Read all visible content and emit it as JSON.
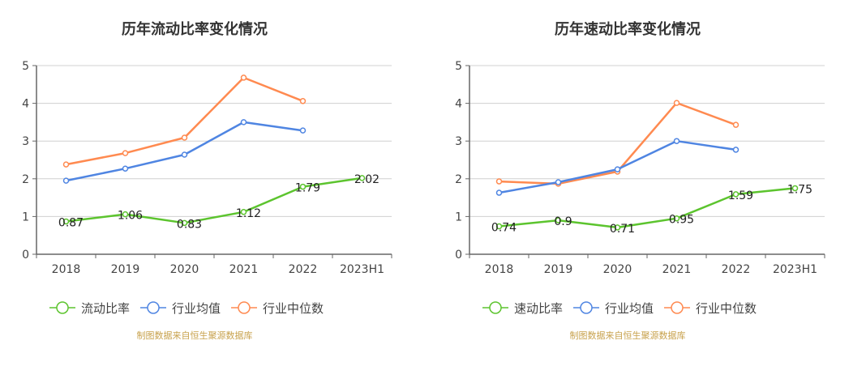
{
  "chart_data": [
    {
      "type": "line",
      "title": "历年流动比率变化情况",
      "categories": [
        "2018",
        "2019",
        "2020",
        "2021",
        "2022",
        "2023H1"
      ],
      "ylim": [
        0,
        5
      ],
      "yticks": [
        "0",
        "1",
        "2",
        "3",
        "4",
        "5"
      ],
      "grid": true,
      "legend_position": "bottom",
      "series": [
        {
          "name": "流动比率",
          "color": "#5cc42e",
          "values": [
            0.87,
            1.06,
            0.83,
            1.12,
            1.79,
            2.02
          ],
          "labels": [
            "0.87",
            "1.06",
            "0.83",
            "1.12",
            "1.79",
            "2.02"
          ]
        },
        {
          "name": "行业均值",
          "color": "#4f85e2",
          "values": [
            1.95,
            2.27,
            2.64,
            3.5,
            3.28,
            null
          ]
        },
        {
          "name": "行业中位数",
          "color": "#ff8a50",
          "values": [
            2.38,
            2.68,
            3.09,
            4.68,
            4.06,
            null
          ]
        }
      ],
      "source": "制图数据来自恒生聚源数据库"
    },
    {
      "type": "line",
      "title": "历年速动比率变化情况",
      "categories": [
        "2018",
        "2019",
        "2020",
        "2021",
        "2022",
        "2023H1"
      ],
      "ylim": [
        0,
        5
      ],
      "yticks": [
        "0",
        "1",
        "2",
        "3",
        "4",
        "5"
      ],
      "grid": true,
      "legend_position": "bottom",
      "series": [
        {
          "name": "速动比率",
          "color": "#5cc42e",
          "values": [
            0.74,
            0.9,
            0.71,
            0.95,
            1.59,
            1.75
          ],
          "labels": [
            "0.74",
            "0.9",
            "0.71",
            "0.95",
            "1.59",
            "1.75"
          ]
        },
        {
          "name": "行业均值",
          "color": "#4f85e2",
          "values": [
            1.63,
            1.91,
            2.25,
            3.0,
            2.77,
            null
          ]
        },
        {
          "name": "行业中位数",
          "color": "#ff8a50",
          "values": [
            1.93,
            1.87,
            2.19,
            4.01,
            3.43,
            null
          ]
        }
      ],
      "source": "制图数据来自恒生聚源数据库"
    }
  ]
}
